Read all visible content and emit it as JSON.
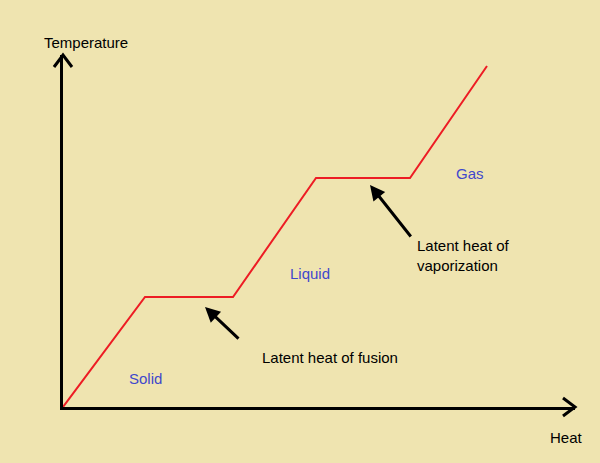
{
  "chart_data": {
    "type": "line",
    "x": [
      0,
      82,
      170,
      253,
      347,
      424
    ],
    "values": [
      0,
      110,
      110,
      229,
      229,
      341
    ],
    "color": "#ed1c24",
    "xlim": [
      0,
      512
    ],
    "ylim": [
      0,
      352
    ],
    "xticks": [],
    "yticks": [],
    "tick_labels": false,
    "grid": false,
    "x_label": "Heat",
    "y_label": "Temperature",
    "annotations": [
      {
        "text": "Solid",
        "x": 82,
        "y": 29,
        "color": "#3f48cc"
      },
      {
        "text": "Liquid",
        "x": 247,
        "y": 134,
        "color": "#3f48cc"
      },
      {
        "text": "Gas",
        "x": 407,
        "y": 234,
        "color": "#3f48cc"
      },
      {
        "text": "Latent heat of fusion",
        "x": 197,
        "y": 50,
        "color": "#000000",
        "arrow": {
          "from": [
            177,
            67
          ],
          "to": [
            142,
            100
          ]
        }
      },
      {
        "text": [
          "Latent heat of",
          "vaporization"
        ],
        "x": 352,
        "y": 152,
        "color": "#000000",
        "arrow": {
          "from": [
            349,
            169
          ],
          "to": [
            307,
            222
          ]
        }
      }
    ]
  }
}
